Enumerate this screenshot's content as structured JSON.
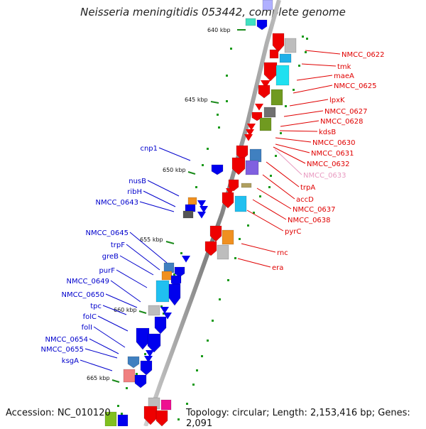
{
  "title": "Neisseria meningitidis 053442, complete genome",
  "footer": {
    "accession": "Accession: NC_010120",
    "summary": "Topology: circular; Length: 2,153,416 bp; Genes: 2,091"
  },
  "colors": {
    "backbone": "#8c8c8c",
    "right_labels": "#e00000",
    "left_labels": "#0000cc",
    "faded_label": "#e89ac0",
    "tick_marks": "#00a000",
    "kbp_ticks": "#333333"
  },
  "kbp_marks": [
    {
      "label": "640 kbp"
    },
    {
      "label": "645 kbp"
    },
    {
      "label": "650 kbp"
    },
    {
      "label": "655 kbp"
    },
    {
      "label": "660 kbp"
    },
    {
      "label": "665 kbp"
    }
  ],
  "right_labels": [
    {
      "name": "NMCC_0622"
    },
    {
      "name": "tmk"
    },
    {
      "name": "maeA"
    },
    {
      "name": "NMCC_0625"
    },
    {
      "name": "lpxK"
    },
    {
      "name": "NMCC_0627"
    },
    {
      "name": "NMCC_0628"
    },
    {
      "name": "kdsB"
    },
    {
      "name": "NMCC_0630"
    },
    {
      "name": "NMCC_0631"
    },
    {
      "name": "NMCC_0632"
    },
    {
      "name": "NMCC_0633"
    },
    {
      "name": "trpA"
    },
    {
      "name": "accD"
    },
    {
      "name": "NMCC_0637"
    },
    {
      "name": "NMCC_0638"
    },
    {
      "name": "pyrC"
    },
    {
      "name": "rnc"
    },
    {
      "name": "era"
    }
  ],
  "left_labels": [
    {
      "name": "cnp1"
    },
    {
      "name": "nusB"
    },
    {
      "name": "ribH"
    },
    {
      "name": "NMCC_0643"
    },
    {
      "name": "NMCC_0645"
    },
    {
      "name": "trpF"
    },
    {
      "name": "greB"
    },
    {
      "name": "purF"
    },
    {
      "name": "NMCC_0649"
    },
    {
      "name": "NMCC_0650"
    },
    {
      "name": "tpc"
    },
    {
      "name": "folC"
    },
    {
      "name": "folI"
    },
    {
      "name": "NMCC_0654"
    },
    {
      "name": "NMCC_0655"
    },
    {
      "name": "ksgA"
    }
  ]
}
